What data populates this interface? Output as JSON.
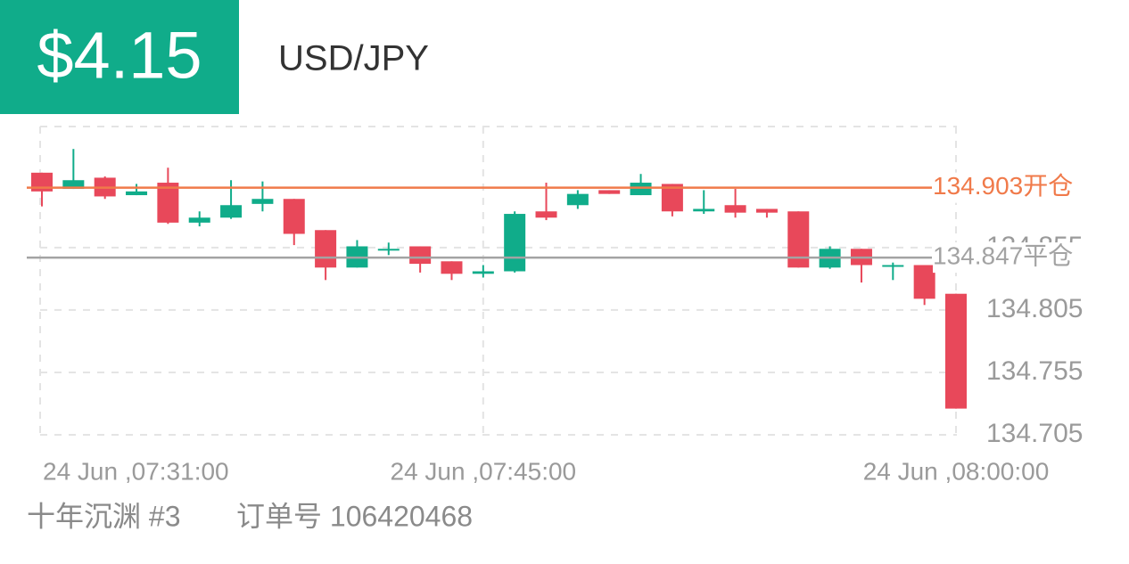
{
  "header": {
    "profit": "$4.15",
    "symbol": "USD/JPY"
  },
  "footer": {
    "user": "十年沉渊 #3",
    "order": "订单号 106420468"
  },
  "chart_data": {
    "type": "candlestick",
    "categories": [
      "24 Jun ,07:31:00",
      null,
      null,
      null,
      null,
      null,
      null,
      null,
      null,
      null,
      null,
      null,
      null,
      null,
      "24 Jun ,07:45:00",
      null,
      null,
      null,
      null,
      null,
      null,
      null,
      null,
      null,
      null,
      null,
      null,
      null,
      null,
      "24 Jun ,08:00:00"
    ],
    "open": [
      134.915,
      134.902,
      134.911,
      134.897,
      134.907,
      134.875,
      134.879,
      134.89,
      134.894,
      134.869,
      134.839,
      134.853,
      134.856,
      134.844,
      134.834,
      134.836,
      134.884,
      134.889,
      134.901,
      134.897,
      134.906,
      134.884,
      134.889,
      134.886,
      134.884,
      134.839,
      134.854,
      134.84,
      134.841,
      134.818
    ],
    "high": [
      134.915,
      134.934,
      134.912,
      134.906,
      134.919,
      134.884,
      134.909,
      134.908,
      134.894,
      134.869,
      134.861,
      134.859,
      134.856,
      134.844,
      134.841,
      134.884,
      134.907,
      134.901,
      134.901,
      134.914,
      134.906,
      134.901,
      134.902,
      134.886,
      134.884,
      134.856,
      134.854,
      134.843,
      134.841,
      134.818
    ],
    "low": [
      134.888,
      134.902,
      134.894,
      134.897,
      134.874,
      134.872,
      134.878,
      134.884,
      134.857,
      134.829,
      134.839,
      134.849,
      134.835,
      134.829,
      134.831,
      134.835,
      134.877,
      134.886,
      134.898,
      134.897,
      134.88,
      134.882,
      134.879,
      134.879,
      134.839,
      134.838,
      134.827,
      134.829,
      134.809,
      134.726
    ],
    "close": [
      134.9,
      134.909,
      134.896,
      134.9,
      134.875,
      134.879,
      134.889,
      134.894,
      134.866,
      134.839,
      134.856,
      134.854,
      134.842,
      134.834,
      134.836,
      134.882,
      134.879,
      134.898,
      134.898,
      134.907,
      134.884,
      134.886,
      134.883,
      134.883,
      134.839,
      134.854,
      134.841,
      134.841,
      134.814,
      134.726
    ],
    "up_color": "#10ac8a",
    "down_color": "#e8485a",
    "ylim": [
      134.705,
      134.952
    ],
    "yticks": [
      134.705,
      134.755,
      134.805,
      134.855
    ],
    "grid": true,
    "lines": [
      {
        "value": 134.903,
        "label": "134.903开仓",
        "color": "#f07a4a"
      },
      {
        "value": 134.847,
        "label": "134.847平仓",
        "color": "#a3a3a3"
      }
    ]
  }
}
